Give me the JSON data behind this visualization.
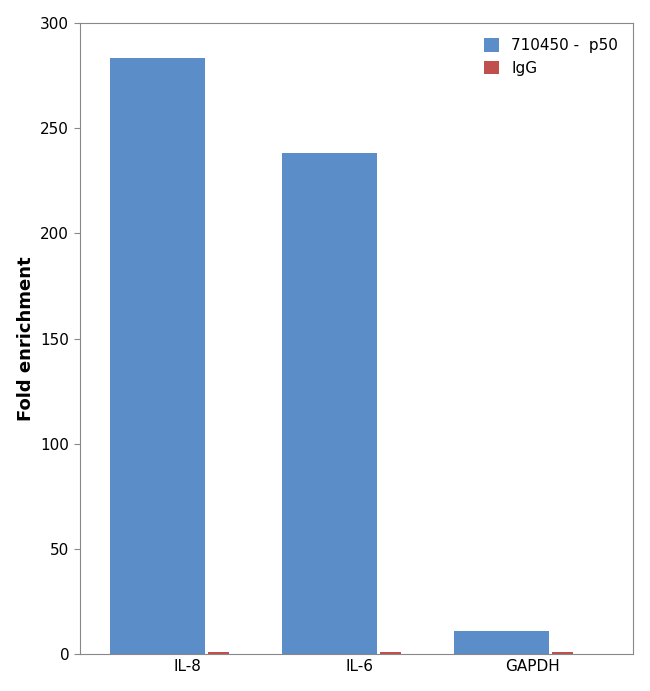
{
  "categories": [
    "IL-8",
    "IL-6",
    "GAPDH"
  ],
  "series": [
    {
      "label": "710450 -  p50",
      "color": "#5B8DC8",
      "values": [
        283,
        238,
        11
      ]
    },
    {
      "label": "IgG",
      "color": "#C0504D",
      "values": [
        1.0,
        1.0,
        1.0
      ]
    }
  ],
  "ylabel": "Fold enrichment",
  "ylim": [
    0,
    300
  ],
  "yticks": [
    0,
    50,
    100,
    150,
    200,
    250,
    300
  ],
  "blue_bar_width": 0.55,
  "red_bar_width": 0.12,
  "legend_loc": "upper right",
  "background_color": "#ffffff",
  "ylabel_fontsize": 13,
  "tick_fontsize": 11,
  "legend_fontsize": 11
}
